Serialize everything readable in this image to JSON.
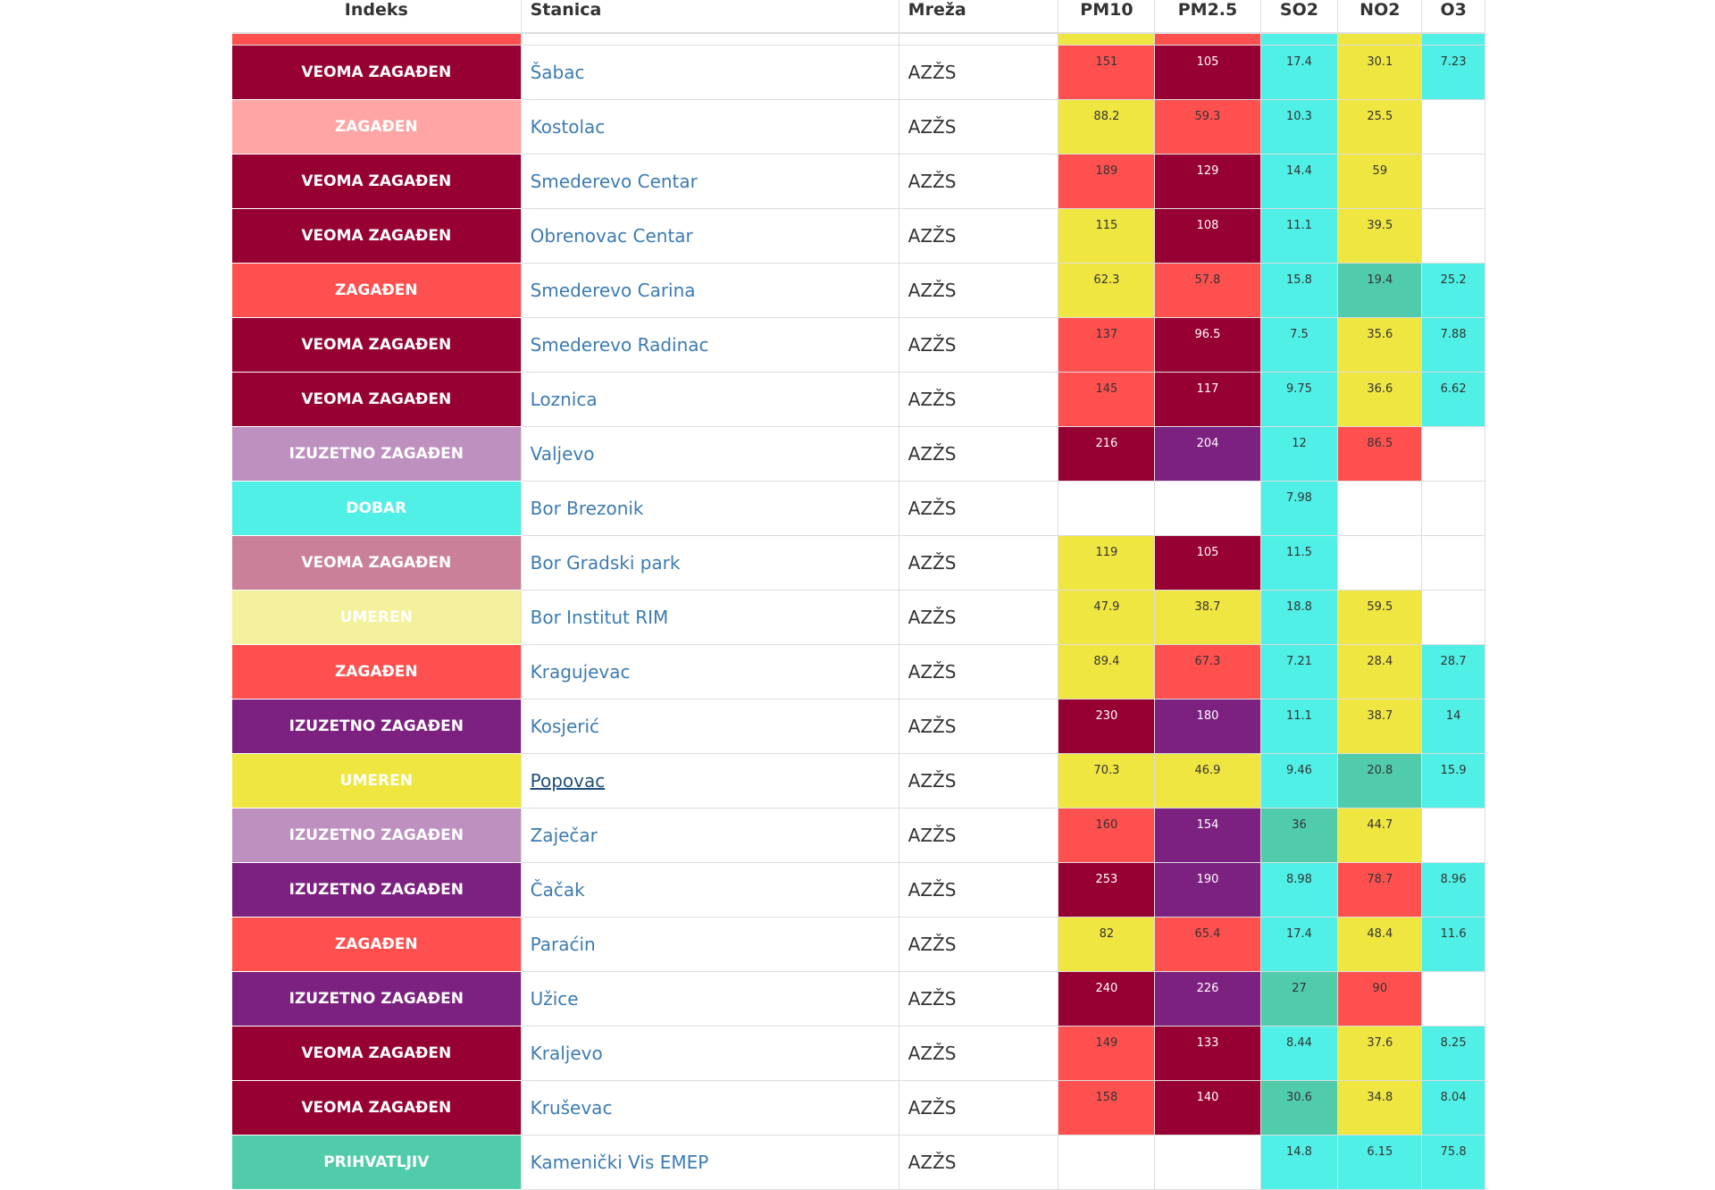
{
  "headers": {
    "indeks": "Indeks",
    "stanica": "Stanica",
    "mreza": "Mreža",
    "pm10": "PM10",
    "pm25": "PM2.5",
    "so2": "SO2",
    "no2": "NO2",
    "o3": "O3"
  },
  "colors": {
    "dobar": "#50f0e6",
    "prihvatljiv": "#50ccaa",
    "umeren": "#f0e641",
    "umeren_pale": "#f5f09b",
    "zagadjen": "#ff5050",
    "zagadjen_pale": "#ffa5a5",
    "veoma": "#960032",
    "veoma_pale": "#cb8099",
    "izuzetno": "#7d2181",
    "izuzetno_pale": "#be90c0",
    "empty": "#ffffff"
  },
  "top_strip": {
    "index_color": "#ff5050",
    "pm10": "#f0e641",
    "pm25": "#ff5050",
    "so2": "#50f0e6",
    "no2": "#f0e641",
    "o3": "#50f0e6"
  },
  "rows": [
    {
      "index": "VEOMA ZAGAĐEN",
      "index_color": "#960032",
      "station": "Šabac",
      "network": "AZŽS",
      "pm10": {
        "v": "151",
        "c": "#ff5050"
      },
      "pm25": {
        "v": "105",
        "c": "#960032"
      },
      "so2": {
        "v": "17.4",
        "c": "#50f0e6"
      },
      "no2": {
        "v": "30.1",
        "c": "#f0e641"
      },
      "o3": {
        "v": "7.23",
        "c": "#50f0e6"
      }
    },
    {
      "index": "ZAGAĐEN",
      "index_color": "#ffa5a5",
      "station": "Kostolac",
      "network": "AZŽS",
      "pm10": {
        "v": "88.2",
        "c": "#f0e641"
      },
      "pm25": {
        "v": "59.3",
        "c": "#ff5050"
      },
      "so2": {
        "v": "10.3",
        "c": "#50f0e6"
      },
      "no2": {
        "v": "25.5",
        "c": "#f0e641"
      },
      "o3": {
        "v": "",
        "c": "#ffffff"
      }
    },
    {
      "index": "VEOMA ZAGAĐEN",
      "index_color": "#960032",
      "station": "Smederevo Centar",
      "network": "AZŽS",
      "pm10": {
        "v": "189",
        "c": "#ff5050"
      },
      "pm25": {
        "v": "129",
        "c": "#960032"
      },
      "so2": {
        "v": "14.4",
        "c": "#50f0e6"
      },
      "no2": {
        "v": "59",
        "c": "#f0e641"
      },
      "o3": {
        "v": "",
        "c": "#ffffff"
      }
    },
    {
      "index": "VEOMA ZAGAĐEN",
      "index_color": "#960032",
      "station": "Obrenovac Centar",
      "network": "AZŽS",
      "pm10": {
        "v": "115",
        "c": "#f0e641"
      },
      "pm25": {
        "v": "108",
        "c": "#960032"
      },
      "so2": {
        "v": "11.1",
        "c": "#50f0e6"
      },
      "no2": {
        "v": "39.5",
        "c": "#f0e641"
      },
      "o3": {
        "v": "",
        "c": "#ffffff"
      }
    },
    {
      "index": "ZAGAĐEN",
      "index_color": "#ff5050",
      "station": "Smederevo Carina",
      "network": "AZŽS",
      "pm10": {
        "v": "62.3",
        "c": "#f0e641"
      },
      "pm25": {
        "v": "57.8",
        "c": "#ff5050"
      },
      "so2": {
        "v": "15.8",
        "c": "#50f0e6"
      },
      "no2": {
        "v": "19.4",
        "c": "#50ccaa"
      },
      "o3": {
        "v": "25.2",
        "c": "#50f0e6"
      }
    },
    {
      "index": "VEOMA ZAGAĐEN",
      "index_color": "#960032",
      "station": "Smederevo Radinac",
      "network": "AZŽS",
      "pm10": {
        "v": "137",
        "c": "#ff5050"
      },
      "pm25": {
        "v": "96.5",
        "c": "#960032"
      },
      "so2": {
        "v": "7.5",
        "c": "#50f0e6"
      },
      "no2": {
        "v": "35.6",
        "c": "#f0e641"
      },
      "o3": {
        "v": "7.88",
        "c": "#50f0e6"
      }
    },
    {
      "index": "VEOMA ZAGAĐEN",
      "index_color": "#960032",
      "station": "Loznica",
      "network": "AZŽS",
      "pm10": {
        "v": "145",
        "c": "#ff5050"
      },
      "pm25": {
        "v": "117",
        "c": "#960032"
      },
      "so2": {
        "v": "9.75",
        "c": "#50f0e6"
      },
      "no2": {
        "v": "36.6",
        "c": "#f0e641"
      },
      "o3": {
        "v": "6.62",
        "c": "#50f0e6"
      }
    },
    {
      "index": "IZUZETNO ZAGAĐEN",
      "index_color": "#be90c0",
      "station": "Valjevo",
      "network": "AZŽS",
      "pm10": {
        "v": "216",
        "c": "#960032"
      },
      "pm25": {
        "v": "204",
        "c": "#7d2181"
      },
      "so2": {
        "v": "12",
        "c": "#50f0e6"
      },
      "no2": {
        "v": "86.5",
        "c": "#ff5050"
      },
      "o3": {
        "v": "",
        "c": "#ffffff"
      }
    },
    {
      "index": "DOBAR",
      "index_color": "#50f0e6",
      "station": "Bor Brezonik",
      "network": "AZŽS",
      "pm10": {
        "v": "",
        "c": "#ffffff"
      },
      "pm25": {
        "v": "",
        "c": "#ffffff"
      },
      "so2": {
        "v": "7.98",
        "c": "#50f0e6"
      },
      "no2": {
        "v": "",
        "c": "#ffffff"
      },
      "o3": {
        "v": "",
        "c": "#ffffff"
      }
    },
    {
      "index": "VEOMA ZAGAĐEN",
      "index_color": "#cb8099",
      "station": "Bor Gradski park",
      "network": "AZŽS",
      "pm10": {
        "v": "119",
        "c": "#f0e641"
      },
      "pm25": {
        "v": "105",
        "c": "#960032"
      },
      "so2": {
        "v": "11.5",
        "c": "#50f0e6"
      },
      "no2": {
        "v": "",
        "c": "#ffffff"
      },
      "o3": {
        "v": "",
        "c": "#ffffff"
      }
    },
    {
      "index": "UMEREN",
      "index_color": "#f5f09b",
      "station": "Bor Institut RIM",
      "network": "AZŽS",
      "pm10": {
        "v": "47.9",
        "c": "#f0e641"
      },
      "pm25": {
        "v": "38.7",
        "c": "#f0e641"
      },
      "so2": {
        "v": "18.8",
        "c": "#50f0e6"
      },
      "no2": {
        "v": "59.5",
        "c": "#f0e641"
      },
      "o3": {
        "v": "",
        "c": "#ffffff"
      }
    },
    {
      "index": "ZAGAĐEN",
      "index_color": "#ff5050",
      "station": "Kragujevac",
      "network": "AZŽS",
      "pm10": {
        "v": "89.4",
        "c": "#f0e641"
      },
      "pm25": {
        "v": "67.3",
        "c": "#ff5050"
      },
      "so2": {
        "v": "7.21",
        "c": "#50f0e6"
      },
      "no2": {
        "v": "28.4",
        "c": "#f0e641"
      },
      "o3": {
        "v": "28.7",
        "c": "#50f0e6"
      }
    },
    {
      "index": "IZUZETNO ZAGAĐEN",
      "index_color": "#7d2181",
      "station": "Kosjerić",
      "network": "AZŽS",
      "pm10": {
        "v": "230",
        "c": "#960032"
      },
      "pm25": {
        "v": "180",
        "c": "#7d2181"
      },
      "so2": {
        "v": "11.1",
        "c": "#50f0e6"
      },
      "no2": {
        "v": "38.7",
        "c": "#f0e641"
      },
      "o3": {
        "v": "14",
        "c": "#50f0e6"
      }
    },
    {
      "index": "UMEREN",
      "index_color": "#f0e641",
      "station": "Popovac",
      "network": "AZŽS",
      "underlined": true,
      "pm10": {
        "v": "70.3",
        "c": "#f0e641"
      },
      "pm25": {
        "v": "46.9",
        "c": "#f0e641"
      },
      "so2": {
        "v": "9.46",
        "c": "#50f0e6"
      },
      "no2": {
        "v": "20.8",
        "c": "#50ccaa"
      },
      "o3": {
        "v": "15.9",
        "c": "#50f0e6"
      }
    },
    {
      "index": "IZUZETNO ZAGAĐEN",
      "index_color": "#be90c0",
      "station": "Zaječar",
      "network": "AZŽS",
      "pm10": {
        "v": "160",
        "c": "#ff5050"
      },
      "pm25": {
        "v": "154",
        "c": "#7d2181"
      },
      "so2": {
        "v": "36",
        "c": "#50ccaa"
      },
      "no2": {
        "v": "44.7",
        "c": "#f0e641"
      },
      "o3": {
        "v": "",
        "c": "#ffffff"
      }
    },
    {
      "index": "IZUZETNO ZAGAĐEN",
      "index_color": "#7d2181",
      "station": "Čačak",
      "network": "AZŽS",
      "pm10": {
        "v": "253",
        "c": "#960032"
      },
      "pm25": {
        "v": "190",
        "c": "#7d2181"
      },
      "so2": {
        "v": "8.98",
        "c": "#50f0e6"
      },
      "no2": {
        "v": "78.7",
        "c": "#ff5050"
      },
      "o3": {
        "v": "8.96",
        "c": "#50f0e6"
      }
    },
    {
      "index": "ZAGAĐEN",
      "index_color": "#ff5050",
      "station": "Paraćin",
      "network": "AZŽS",
      "pm10": {
        "v": "82",
        "c": "#f0e641"
      },
      "pm25": {
        "v": "65.4",
        "c": "#ff5050"
      },
      "so2": {
        "v": "17.4",
        "c": "#50f0e6"
      },
      "no2": {
        "v": "48.4",
        "c": "#f0e641"
      },
      "o3": {
        "v": "11.6",
        "c": "#50f0e6"
      }
    },
    {
      "index": "IZUZETNO ZAGAĐEN",
      "index_color": "#7d2181",
      "station": "Užice",
      "network": "AZŽS",
      "pm10": {
        "v": "240",
        "c": "#960032"
      },
      "pm25": {
        "v": "226",
        "c": "#7d2181"
      },
      "so2": {
        "v": "27",
        "c": "#50ccaa"
      },
      "no2": {
        "v": "90",
        "c": "#ff5050"
      },
      "o3": {
        "v": "",
        "c": "#ffffff"
      }
    },
    {
      "index": "VEOMA ZAGAĐEN",
      "index_color": "#960032",
      "station": "Kraljevo",
      "network": "AZŽS",
      "pm10": {
        "v": "149",
        "c": "#ff5050"
      },
      "pm25": {
        "v": "133",
        "c": "#960032"
      },
      "so2": {
        "v": "8.44",
        "c": "#50f0e6"
      },
      "no2": {
        "v": "37.6",
        "c": "#f0e641"
      },
      "o3": {
        "v": "8.25",
        "c": "#50f0e6"
      }
    },
    {
      "index": "VEOMA ZAGAĐEN",
      "index_color": "#960032",
      "station": "Kruševac",
      "network": "AZŽS",
      "pm10": {
        "v": "158",
        "c": "#ff5050"
      },
      "pm25": {
        "v": "140",
        "c": "#960032"
      },
      "so2": {
        "v": "30.6",
        "c": "#50ccaa"
      },
      "no2": {
        "v": "34.8",
        "c": "#f0e641"
      },
      "o3": {
        "v": "8.04",
        "c": "#50f0e6"
      }
    },
    {
      "index": "PRIHVATLJIV",
      "index_color": "#50ccaa",
      "station": "Kamenički Vis EMEP",
      "network": "AZŽS",
      "pm10": {
        "v": "",
        "c": "#ffffff"
      },
      "pm25": {
        "v": "",
        "c": "#ffffff"
      },
      "so2": {
        "v": "14.8",
        "c": "#50f0e6"
      },
      "no2": {
        "v": "6.15",
        "c": "#50f0e6"
      },
      "o3": {
        "v": "75.8",
        "c": "#50f0e6"
      }
    }
  ]
}
